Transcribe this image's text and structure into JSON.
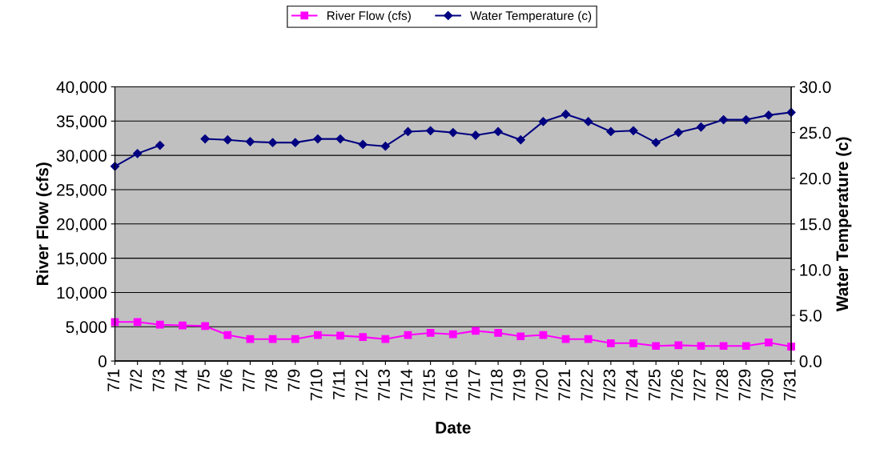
{
  "chart_data": {
    "type": "line",
    "xlabel": "Date",
    "ylabel": "River Flow (cfs)",
    "y2label": "Water Temperature (c)",
    "categories": [
      "7/1",
      "7/2",
      "7/3",
      "7/4",
      "7/5",
      "7/6",
      "7/7",
      "7/8",
      "7/9",
      "7/10",
      "7/11",
      "7/12",
      "7/13",
      "7/14",
      "7/15",
      "7/16",
      "7/17",
      "7/18",
      "7/19",
      "7/20",
      "7/21",
      "7/22",
      "7/23",
      "7/24",
      "7/25",
      "7/26",
      "7/27",
      "7/28",
      "7/29",
      "7/30",
      "7/31"
    ],
    "series": [
      {
        "name": "River Flow (cfs)",
        "color": "#ff00ff",
        "marker": "square",
        "values": [
          5700,
          5700,
          5300,
          5200,
          5100,
          3800,
          3200,
          3200,
          3200,
          3800,
          3700,
          3500,
          3200,
          3800,
          4100,
          3900,
          4400,
          4100,
          3600,
          3800,
          3200,
          3200,
          2600,
          2600,
          2200,
          2300,
          2200,
          2200,
          2200,
          2700,
          2100
        ]
      },
      {
        "name": "Water Temperature (c)",
        "color": "#000080",
        "marker": "diamond",
        "axis": "y2",
        "values": [
          21.3,
          22.7,
          23.6,
          null,
          24.3,
          24.2,
          24.0,
          23.9,
          23.9,
          24.3,
          24.3,
          23.7,
          23.5,
          25.1,
          25.2,
          25.0,
          24.7,
          25.1,
          24.2,
          26.2,
          27.0,
          26.2,
          25.1,
          25.2,
          23.9,
          25.0,
          25.6,
          26.4,
          26.4,
          26.9,
          27.2
        ]
      }
    ],
    "ylim": [
      0,
      40000
    ],
    "yticks": [
      {
        "value": 0,
        "label": "0"
      },
      {
        "value": 5000,
        "label": "5,000"
      },
      {
        "value": 10000,
        "label": "10,000"
      },
      {
        "value": 15000,
        "label": "15,000"
      },
      {
        "value": 20000,
        "label": "20,000"
      },
      {
        "value": 25000,
        "label": "25,000"
      },
      {
        "value": 30000,
        "label": "30,000"
      },
      {
        "value": 35000,
        "label": "35,000"
      },
      {
        "value": 40000,
        "label": "40,000"
      }
    ],
    "y2lim": [
      0,
      30
    ],
    "y2ticks": [
      {
        "value": 0,
        "label": "0.0"
      },
      {
        "value": 5,
        "label": "5.0"
      },
      {
        "value": 10,
        "label": "10.0"
      },
      {
        "value": 15,
        "label": "15.0"
      },
      {
        "value": 20,
        "label": "20.0"
      },
      {
        "value": 25,
        "label": "25.0"
      },
      {
        "value": 30,
        "label": "30.0"
      }
    ],
    "grid": "y",
    "legend": "top",
    "line_style": "solid"
  }
}
